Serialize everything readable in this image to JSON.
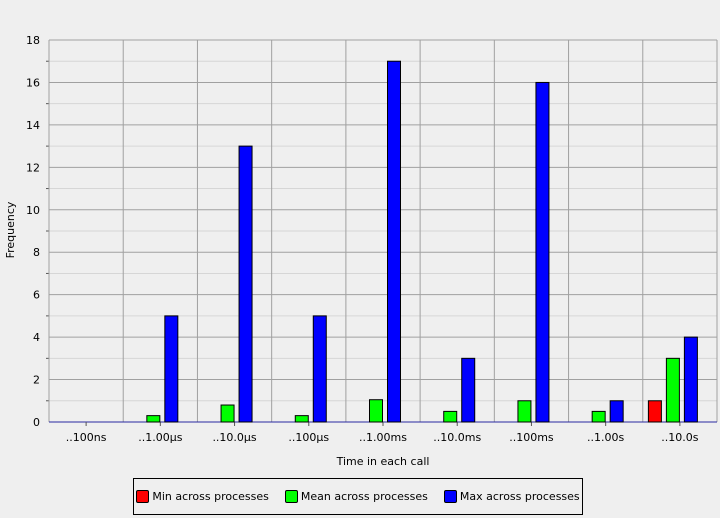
{
  "chart_data": {
    "type": "bar",
    "categories": [
      "..100ns",
      "..1.00µs",
      "..10.0µs",
      "..100µs",
      "..1.00ms",
      "..10.0ms",
      "..100ms",
      "..1.00s",
      "..10.0s"
    ],
    "series": [
      {
        "name": "Min across processes",
        "color": "#ff0000",
        "values": [
          0,
          0,
          0,
          0,
          0,
          0,
          0,
          0,
          1
        ]
      },
      {
        "name": "Mean across processes",
        "color": "#00ff00",
        "values": [
          0,
          0.3,
          0.8,
          0.3,
          1.05,
          0.5,
          1,
          0.5,
          3
        ]
      },
      {
        "name": "Max across processes",
        "color": "#0000ff",
        "values": [
          0,
          5,
          13,
          5,
          17,
          3,
          16,
          1,
          4
        ]
      }
    ],
    "xlabel": "Time in each call",
    "ylabel": "Frequency",
    "ylim": [
      0,
      18
    ],
    "yticks": [
      "0",
      "2",
      "4",
      "6",
      "8",
      "10",
      "12",
      "14",
      "16",
      "18"
    ],
    "grid": true,
    "legend_position": "bottom"
  }
}
